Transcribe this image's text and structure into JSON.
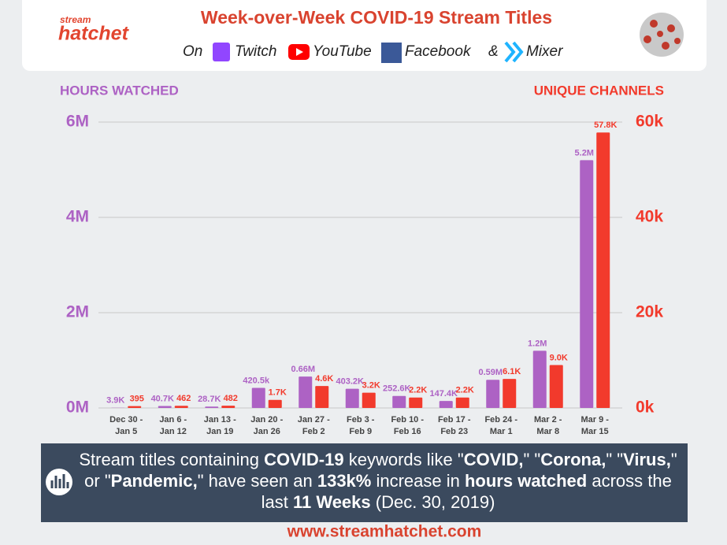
{
  "header": {
    "logo": {
      "top": "stream",
      "main": "hatchet"
    },
    "title": "Week-over-Week COVID-19 Stream Titles",
    "subtitle": {
      "lead": "On",
      "platforms": [
        "Twitch",
        "YouTube",
        "Facebook"
      ],
      "joiner": "&",
      "last": "Mixer"
    }
  },
  "chart_data": {
    "type": "bar",
    "y_axis_label": "HOURS WATCHED",
    "y2_axis_label": "UNIQUE CHANNELS",
    "categories": [
      [
        "Dec 30 -",
        "Jan 5"
      ],
      [
        "Jan 6 -",
        "Jan 12"
      ],
      [
        "Jan 13 -",
        "Jan 19"
      ],
      [
        "Jan 20 -",
        "Jan 26"
      ],
      [
        "Jan 27 -",
        "Feb 2"
      ],
      [
        "Feb 3 -",
        "Feb 9"
      ],
      [
        "Feb 10 -",
        "Feb 16"
      ],
      [
        "Feb 17 -",
        "Feb 23"
      ],
      [
        "Feb 24 -",
        "Mar 1"
      ],
      [
        "Mar 2 -",
        "Mar 8"
      ],
      [
        "Mar 9 -",
        "Mar 15"
      ]
    ],
    "series": [
      {
        "name": "Hours Watched",
        "color": "#ad62c4",
        "axis": "y",
        "values": [
          3900,
          40700,
          28700,
          420500,
          660000,
          403200,
          252600,
          147400,
          590000,
          1200000,
          5200000
        ],
        "value_labels": [
          "3.9K",
          "40.7K",
          "28.7K",
          "420.5k",
          "0.66M",
          "403.2K",
          "252.6K",
          "147.4K",
          "0.59M",
          "1.2M",
          "5.2M"
        ]
      },
      {
        "name": "Unique Channels",
        "color": "#f23a2c",
        "axis": "y2",
        "values": [
          395,
          462,
          482,
          1700,
          4600,
          3200,
          2200,
          2200,
          6100,
          9000,
          57800
        ],
        "value_labels": [
          "395",
          "462",
          "482",
          "1.7K",
          "4.6K",
          "3.2K",
          "2.2K",
          "2.2K",
          "6.1K",
          "9.0K",
          "57.8K"
        ]
      }
    ],
    "ylim": [
      0,
      6000000
    ],
    "yticks": [
      {
        "value": 0,
        "label": "0M"
      },
      {
        "value": 2000000,
        "label": "2M"
      },
      {
        "value": 4000000,
        "label": "4M"
      },
      {
        "value": 6000000,
        "label": "6M"
      }
    ],
    "y2lim": [
      0,
      60000
    ],
    "y2ticks": [
      {
        "value": 0,
        "label": "0k"
      },
      {
        "value": 20000,
        "label": "20k"
      },
      {
        "value": 40000,
        "label": "40k"
      },
      {
        "value": 60000,
        "label": "60k"
      }
    ],
    "grid": true
  },
  "footer": {
    "runs": [
      {
        "text": "Stream titles containing ",
        "bold": false
      },
      {
        "text": "COVID-19",
        "bold": true
      },
      {
        "text": " keywords like \"",
        "bold": false
      },
      {
        "text": "COVID,",
        "bold": true
      },
      {
        "text": "\" \"",
        "bold": false
      },
      {
        "text": "Corona,",
        "bold": true
      },
      {
        "text": "\" \"",
        "bold": false
      },
      {
        "text": "Virus,",
        "bold": true
      },
      {
        "text": "\" or \"",
        "bold": false
      },
      {
        "text": "Pandemic,",
        "bold": true
      },
      {
        "text": "\" have seen an ",
        "bold": false
      },
      {
        "text": "133k%",
        "bold": true
      },
      {
        "text": " increase in ",
        "bold": false
      },
      {
        "text": "hours watched",
        "bold": true
      },
      {
        "text": " across the last ",
        "bold": false
      },
      {
        "text": "11 Weeks",
        "bold": true
      },
      {
        "text": " (Dec. 30, 2019)",
        "bold": false
      }
    ],
    "url": "www.streamhatchet.com"
  }
}
